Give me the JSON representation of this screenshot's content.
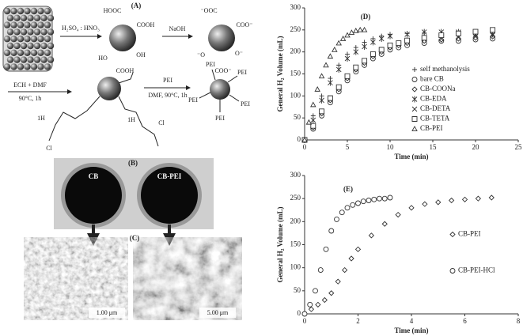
{
  "scheme": {
    "panel_a": "(A)",
    "acid": "H₂SO₄ : HNO₃",
    "base": "NaOH",
    "cooh_labels": [
      "HOOC",
      "COOH",
      "HO",
      "OH",
      "COOH"
    ],
    "anion_labels": [
      "⁻OOC",
      "COO⁻",
      "⁻O",
      "O⁻",
      "COO⁻"
    ],
    "ech": "ECH + DMF",
    "ech_cond": "90°C, 1h",
    "hours": [
      "1H",
      "1H"
    ],
    "cl": [
      "Cl",
      "Cl"
    ],
    "pei": "PEI",
    "pei_cond": "DMF, 90°C, 1h",
    "pei_labels": [
      "PEI",
      "PEI",
      "PEI",
      "PEI",
      "PEI"
    ],
    "panel_b": "(B)",
    "photo_labels": [
      "CB",
      "CB-PEI"
    ],
    "panel_c": "(C)",
    "scale_bars": [
      "1.00 μm",
      "5.00 μm"
    ]
  },
  "chart_data": [
    {
      "type": "scatter",
      "title": "(D)",
      "xlabel": "Time (min)",
      "ylabel": "General H₂ Volume (mL)",
      "xlim": [
        0,
        25
      ],
      "xticks": [
        0,
        5,
        10,
        15,
        20,
        25
      ],
      "ylim": [
        0,
        300
      ],
      "yticks": [
        0,
        50,
        100,
        150,
        200,
        250,
        300
      ],
      "legend": "lower right",
      "series": [
        {
          "name": "self methanolysis",
          "color": "#333333",
          "marker": "plus",
          "x": [
            0,
            1,
            2,
            3,
            4,
            5,
            6,
            7,
            8,
            9,
            10,
            12,
            14
          ],
          "values": [
            0,
            55,
            100,
            140,
            170,
            195,
            210,
            222,
            230,
            236,
            240,
            242,
            243
          ]
        },
        {
          "name": "bare CB",
          "color": "#333333",
          "marker": "circle",
          "x": [
            0,
            1,
            2,
            3,
            4,
            5,
            6,
            7,
            8,
            9,
            10,
            11,
            12,
            14,
            16,
            18,
            20,
            22
          ],
          "values": [
            0,
            25,
            55,
            85,
            110,
            135,
            155,
            170,
            185,
            195,
            205,
            210,
            215,
            220,
            225,
            225,
            228,
            230
          ]
        },
        {
          "name": "CB-COONa",
          "color": "#333333",
          "marker": "diamond",
          "x": [
            0,
            1,
            2,
            3,
            4,
            5,
            6,
            7,
            8,
            9,
            10,
            11,
            12,
            14,
            16,
            18,
            20,
            22
          ],
          "values": [
            0,
            28,
            60,
            90,
            115,
            140,
            160,
            175,
            190,
            200,
            210,
            215,
            220,
            225,
            228,
            230,
            232,
            235
          ]
        },
        {
          "name": "CB-EDA",
          "color": "#333333",
          "marker": "asterisk",
          "x": [
            0,
            1,
            2,
            3,
            4,
            5,
            6,
            7,
            8,
            9,
            10,
            12,
            14,
            16,
            18,
            20,
            22
          ],
          "values": [
            0,
            45,
            90,
            130,
            160,
            185,
            200,
            212,
            222,
            230,
            236,
            240,
            245,
            245,
            245,
            240,
            240
          ]
        },
        {
          "name": "CB-DETA",
          "color": "#333333",
          "marker": "x",
          "x": [
            0,
            1,
            2,
            3,
            4,
            5,
            6,
            7,
            8,
            9,
            10,
            11,
            12,
            14,
            16,
            18,
            20,
            22
          ],
          "values": [
            0,
            30,
            62,
            92,
            118,
            142,
            162,
            178,
            192,
            202,
            212,
            218,
            222,
            228,
            230,
            233,
            235,
            238
          ]
        },
        {
          "name": "CB-TETA",
          "color": "#333333",
          "marker": "square",
          "x": [
            0,
            1,
            2,
            3,
            4,
            5,
            6,
            7,
            8,
            9,
            10,
            11,
            12,
            14,
            16,
            18,
            20,
            22
          ],
          "values": [
            0,
            32,
            65,
            95,
            120,
            145,
            165,
            180,
            195,
            205,
            215,
            220,
            226,
            232,
            238,
            242,
            246,
            250
          ]
        },
        {
          "name": "CB-PEI",
          "color": "#333333",
          "marker": "triangle",
          "x": [
            0,
            0.5,
            1,
            1.5,
            2,
            2.5,
            3,
            3.5,
            4,
            4.5,
            5,
            5.5,
            6,
            6.5,
            7
          ],
          "values": [
            0,
            40,
            80,
            115,
            145,
            170,
            190,
            205,
            220,
            230,
            238,
            244,
            248,
            250,
            250
          ]
        }
      ]
    },
    {
      "type": "scatter",
      "title": "(E)",
      "xlabel": "Time (min)",
      "ylabel": "General H₂ Volume (mL)",
      "xlim": [
        0,
        8
      ],
      "xticks": [
        0,
        2,
        4,
        6,
        8
      ],
      "ylim": [
        0,
        300
      ],
      "yticks": [
        0,
        50,
        100,
        150,
        200,
        250,
        300
      ],
      "legend": "center right",
      "series": [
        {
          "name": "CB-PEI",
          "color": "#333333",
          "marker": "diamond",
          "x": [
            0,
            0.25,
            0.5,
            0.75,
            1,
            1.25,
            1.5,
            1.75,
            2,
            2.5,
            3,
            3.5,
            4,
            4.5,
            5,
            5.5,
            6,
            6.5,
            7
          ],
          "values": [
            0,
            10,
            20,
            30,
            45,
            70,
            95,
            120,
            140,
            170,
            195,
            215,
            230,
            238,
            242,
            246,
            248,
            250,
            252
          ]
        },
        {
          "name": "CB-PEI-HCl",
          "color": "#333333",
          "marker": "circle",
          "x": [
            0,
            0.2,
            0.4,
            0.6,
            0.8,
            1,
            1.2,
            1.4,
            1.6,
            1.8,
            2,
            2.2,
            2.4,
            2.6,
            2.8,
            3,
            3.2
          ],
          "values": [
            0,
            20,
            50,
            95,
            140,
            180,
            205,
            220,
            230,
            236,
            240,
            244,
            246,
            248,
            250,
            250,
            252
          ]
        }
      ]
    }
  ]
}
